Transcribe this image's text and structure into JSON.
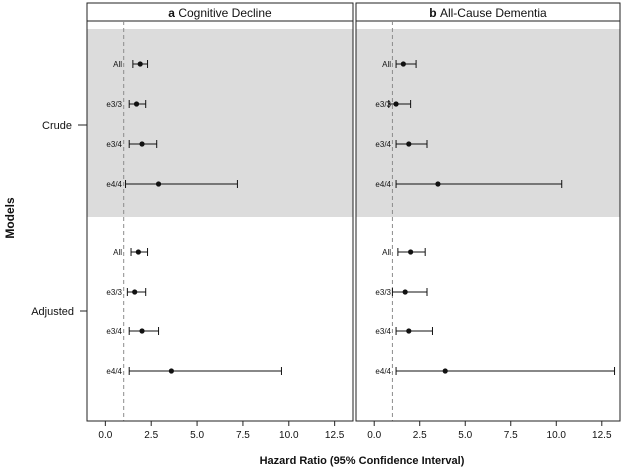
{
  "figure": {
    "y_axis_title": "Models",
    "x_axis_title": "Hazard Ratio (95% Confidence Interval)",
    "group_labels": [
      "Crude",
      "Adjusted"
    ],
    "row_labels": [
      "All",
      "e3/3",
      "e3/4",
      "e4/4"
    ]
  },
  "chart_data": [
    {
      "type": "forest",
      "panel_letter": "a",
      "title": "Cognitive Decline",
      "xlabel": "Hazard Ratio (95% Confidence Interval)",
      "ylabel": "Models",
      "xlim": [
        -1.0,
        13.5
      ],
      "xticks": [
        0,
        2.5,
        5,
        7.5,
        10,
        12.5
      ],
      "xtick_labels": [
        "0.0",
        "2.5",
        "5.0",
        "7.5",
        "10.0",
        "12.5"
      ],
      "reference_line": 1,
      "groups": [
        {
          "name": "Crude",
          "shaded": true,
          "rows": [
            {
              "label": "All",
              "hr": 1.9,
              "lo": 1.5,
              "hi": 2.3
            },
            {
              "label": "e3/3",
              "hr": 1.7,
              "lo": 1.3,
              "hi": 2.2
            },
            {
              "label": "e3/4",
              "hr": 2.0,
              "lo": 1.3,
              "hi": 2.8
            },
            {
              "label": "e4/4",
              "hr": 2.9,
              "lo": 1.1,
              "hi": 7.2
            }
          ]
        },
        {
          "name": "Adjusted",
          "shaded": false,
          "rows": [
            {
              "label": "All",
              "hr": 1.8,
              "lo": 1.4,
              "hi": 2.3
            },
            {
              "label": "e3/3",
              "hr": 1.6,
              "lo": 1.2,
              "hi": 2.2
            },
            {
              "label": "e3/4",
              "hr": 2.0,
              "lo": 1.3,
              "hi": 2.9
            },
            {
              "label": "e4/4",
              "hr": 3.6,
              "lo": 1.3,
              "hi": 9.6
            }
          ]
        }
      ]
    },
    {
      "type": "forest",
      "panel_letter": "b",
      "title": "All-Cause Dementia",
      "xlabel": "Hazard Ratio (95% Confidence Interval)",
      "ylabel": "Models",
      "xlim": [
        -1.0,
        13.5
      ],
      "xticks": [
        0,
        2.5,
        5,
        7.5,
        10,
        12.5
      ],
      "xtick_labels": [
        "0.0",
        "2.5",
        "5.0",
        "7.5",
        "10.0",
        "12.5"
      ],
      "reference_line": 1,
      "groups": [
        {
          "name": "Crude",
          "shaded": true,
          "rows": [
            {
              "label": "All",
              "hr": 1.6,
              "lo": 1.2,
              "hi": 2.3
            },
            {
              "label": "e3/3",
              "hr": 1.2,
              "lo": 0.8,
              "hi": 2.0
            },
            {
              "label": "e3/4",
              "hr": 1.9,
              "lo": 1.2,
              "hi": 2.9
            },
            {
              "label": "e4/4",
              "hr": 3.5,
              "lo": 1.2,
              "hi": 10.3
            }
          ]
        },
        {
          "name": "Adjusted",
          "shaded": false,
          "rows": [
            {
              "label": "All",
              "hr": 2.0,
              "lo": 1.3,
              "hi": 2.8
            },
            {
              "label": "e3/3",
              "hr": 1.7,
              "lo": 1.0,
              "hi": 2.9
            },
            {
              "label": "e3/4",
              "hr": 1.9,
              "lo": 1.2,
              "hi": 3.2
            },
            {
              "label": "e4/4",
              "hr": 3.9,
              "lo": 1.2,
              "hi": 13.2
            }
          ]
        }
      ]
    }
  ],
  "colors": {
    "shaded_band": "#dcdcdc",
    "reference_line": "#8c8c8c",
    "marks": "#111111",
    "frame": "#222222"
  }
}
